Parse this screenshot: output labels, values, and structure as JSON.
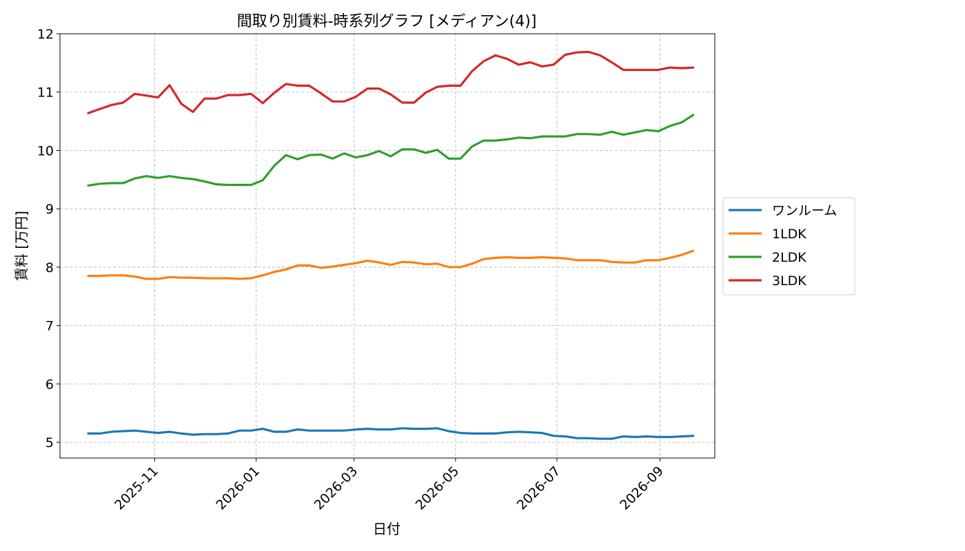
{
  "chart_data": {
    "type": "line",
    "title": "間取り別賃料-時系列グラフ [メディアン(4)]",
    "xlabel": "日付",
    "ylabel": "賃料 [万円]",
    "ylim": [
      4.73,
      12.0
    ],
    "yticks": [
      5,
      6,
      7,
      8,
      9,
      10,
      11,
      12
    ],
    "xlim": [
      "2025-09-05",
      "2026-10-04"
    ],
    "xticks": [
      "2025-11",
      "2026-01",
      "2026-03",
      "2026-05",
      "2026-07",
      "2026-09"
    ],
    "grid": true,
    "legend_position": "right-center",
    "x": [
      "2025-09-22",
      "2025-09-29",
      "2025-10-06",
      "2025-10-13",
      "2025-10-20",
      "2025-10-27",
      "2025-11-03",
      "2025-11-10",
      "2025-11-17",
      "2025-11-24",
      "2025-12-01",
      "2025-12-08",
      "2025-12-15",
      "2025-12-22",
      "2025-12-29",
      "2026-01-05",
      "2026-01-12",
      "2026-01-19",
      "2026-01-26",
      "2026-02-02",
      "2026-02-09",
      "2026-02-16",
      "2026-02-23",
      "2026-03-02",
      "2026-03-09",
      "2026-03-16",
      "2026-03-23",
      "2026-03-30",
      "2026-04-06",
      "2026-04-13",
      "2026-04-20",
      "2026-04-27",
      "2026-05-04",
      "2026-05-11",
      "2026-05-18",
      "2026-05-25",
      "2026-06-01",
      "2026-06-08",
      "2026-06-15",
      "2026-06-22",
      "2026-06-29",
      "2026-07-06",
      "2026-07-13",
      "2026-07-20",
      "2026-07-27",
      "2026-08-03",
      "2026-08-10",
      "2026-08-17",
      "2026-08-24",
      "2026-08-31",
      "2026-09-07",
      "2026-09-14",
      "2026-09-21"
    ],
    "series": [
      {
        "name": "ワンルーム",
        "color": "#1f77b4",
        "values": [
          5.15,
          5.15,
          5.18,
          5.19,
          5.2,
          5.18,
          5.16,
          5.18,
          5.15,
          5.13,
          5.14,
          5.14,
          5.15,
          5.2,
          5.2,
          5.23,
          5.18,
          5.18,
          5.22,
          5.2,
          5.2,
          5.2,
          5.2,
          5.22,
          5.23,
          5.22,
          5.22,
          5.24,
          5.23,
          5.23,
          5.24,
          5.19,
          5.16,
          5.15,
          5.15,
          5.15,
          5.17,
          5.18,
          5.17,
          5.16,
          5.11,
          5.1,
          5.07,
          5.07,
          5.06,
          5.06,
          5.1,
          5.09,
          5.1,
          5.09,
          5.09,
          5.1,
          5.11
        ]
      },
      {
        "name": "1LDK",
        "color": "#ff7f0e",
        "values": [
          7.85,
          7.85,
          7.86,
          7.86,
          7.84,
          7.8,
          7.8,
          7.83,
          7.82,
          7.82,
          7.81,
          7.81,
          7.81,
          7.8,
          7.81,
          7.86,
          7.92,
          7.96,
          8.03,
          8.03,
          7.99,
          8.01,
          8.04,
          8.07,
          8.11,
          8.08,
          8.04,
          8.09,
          8.08,
          8.05,
          8.06,
          8.0,
          8.0,
          8.06,
          8.14,
          8.16,
          8.17,
          8.16,
          8.16,
          8.17,
          8.16,
          8.15,
          8.12,
          8.12,
          8.12,
          8.09,
          8.08,
          8.08,
          8.12,
          8.12,
          8.16,
          8.21,
          8.28
        ]
      },
      {
        "name": "2LDK",
        "color": "#2ca02c",
        "values": [
          9.4,
          9.43,
          9.44,
          9.44,
          9.52,
          9.56,
          9.53,
          9.56,
          9.53,
          9.51,
          9.47,
          9.42,
          9.41,
          9.41,
          9.41,
          9.49,
          9.74,
          9.92,
          9.85,
          9.92,
          9.93,
          9.86,
          9.95,
          9.88,
          9.92,
          9.99,
          9.9,
          10.02,
          10.02,
          9.96,
          10.01,
          9.86,
          9.86,
          10.07,
          10.17,
          10.17,
          10.19,
          10.22,
          10.21,
          10.24,
          10.24,
          10.24,
          10.28,
          10.28,
          10.27,
          10.32,
          10.27,
          10.31,
          10.35,
          10.33,
          10.42,
          10.48,
          10.61
        ]
      },
      {
        "name": "3LDK",
        "color": "#d62728",
        "values": [
          10.64,
          10.71,
          10.78,
          10.82,
          10.97,
          10.94,
          10.91,
          11.12,
          10.8,
          10.66,
          10.89,
          10.89,
          10.95,
          10.95,
          10.97,
          10.81,
          10.99,
          11.14,
          11.11,
          11.11,
          10.98,
          10.84,
          10.84,
          10.92,
          11.06,
          11.06,
          10.96,
          10.82,
          10.82,
          10.99,
          11.09,
          11.11,
          11.11,
          11.36,
          11.53,
          11.63,
          11.57,
          11.47,
          11.51,
          11.44,
          11.47,
          11.64,
          11.68,
          11.69,
          11.63,
          11.51,
          11.38,
          11.38,
          11.38,
          11.38,
          11.42,
          11.41,
          11.42
        ]
      }
    ]
  }
}
